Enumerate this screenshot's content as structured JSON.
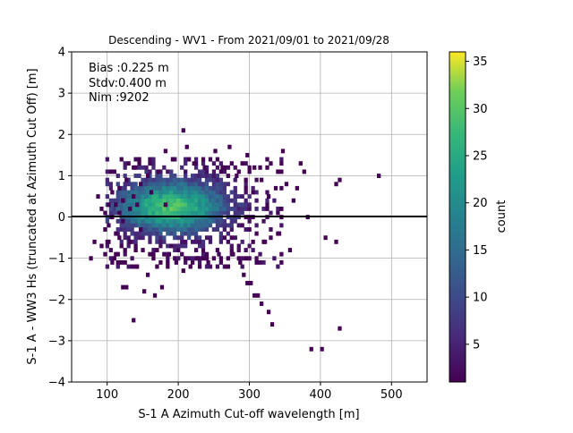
{
  "chart_data": {
    "type": "heatmap",
    "title": "Descending - WV1 - From 2021/09/01 to 2021/09/28",
    "xlabel": "S-1 A Azimuth Cut-off wavelength [m]",
    "ylabel": "S-1 A - WW3 Hs (truncated at Azimuth Cut Off) [m]",
    "xlim": [
      50,
      550
    ],
    "ylim": [
      -4,
      4
    ],
    "xticks": [
      100,
      200,
      300,
      400,
      500
    ],
    "yticks": [
      -4,
      -3,
      -2,
      -1,
      0,
      1,
      2,
      3,
      4
    ],
    "grid": true,
    "reference_line_y": 0,
    "annotations": [
      "Bias :0.225 m",
      "Stdv:0.400 m",
      "Nim :9202"
    ],
    "colorbar": {
      "label": "count",
      "range": [
        1,
        36
      ],
      "ticks": [
        5,
        10,
        15,
        20,
        25,
        30,
        35
      ],
      "colormap": "viridis"
    },
    "bin_size": {
      "x": 5,
      "y": 0.1
    },
    "cells": [
      [
        77,
        -1
      ],
      [
        82,
        -0.6
      ],
      [
        87,
        0.5
      ],
      [
        92,
        0.2
      ],
      [
        92,
        -0.7
      ],
      [
        97,
        0.1
      ],
      [
        97,
        -0.3
      ],
      [
        97,
        -0.9
      ],
      [
        102,
        0.3
      ],
      [
        102,
        -0.2
      ],
      [
        102,
        -0.6
      ],
      [
        107,
        0.6
      ],
      [
        107,
        0
      ],
      [
        107,
        -1.1
      ],
      [
        112,
        0.3
      ],
      [
        112,
        -0.4
      ],
      [
        112,
        -0.9
      ],
      [
        117,
        0.7
      ],
      [
        117,
        0.1
      ],
      [
        117,
        -0.5
      ],
      [
        122,
        0.4
      ],
      [
        122,
        -0.1
      ],
      [
        122,
        -1.7
      ],
      [
        127,
        -1.7
      ],
      [
        127,
        0.9
      ],
      [
        132,
        0.2
      ],
      [
        132,
        -0.6
      ],
      [
        137,
        1.2
      ],
      [
        137,
        0.5
      ],
      [
        137,
        -2.5
      ],
      [
        142,
        0.3
      ],
      [
        142,
        -1.2
      ],
      [
        147,
        0.8
      ],
      [
        147,
        -0.3
      ],
      [
        152,
        -1.8
      ],
      [
        157,
        1.0
      ],
      [
        157,
        -1.4
      ],
      [
        162,
        0.6
      ],
      [
        167,
        -1.9
      ],
      [
        172,
        1.1
      ],
      [
        177,
        -1.7
      ],
      [
        182,
        1.6
      ],
      [
        182,
        0.3
      ],
      [
        187,
        -0.9
      ],
      [
        192,
        1.4
      ],
      [
        197,
        -1.1
      ],
      [
        207,
        2.1
      ],
      [
        207,
        -1.3
      ],
      [
        212,
        1.7
      ],
      [
        217,
        -1.2
      ],
      [
        222,
        1.3
      ],
      [
        227,
        -1.0
      ],
      [
        237,
        1.2
      ],
      [
        242,
        -1.1
      ],
      [
        252,
        1.6
      ],
      [
        257,
        -0.9
      ],
      [
        262,
        1.2
      ],
      [
        267,
        -1.2
      ],
      [
        272,
        1.7
      ],
      [
        277,
        -0.9
      ],
      [
        282,
        1.0
      ],
      [
        287,
        -1.1
      ],
      [
        292,
        -1.4
      ],
      [
        297,
        1.5
      ],
      [
        297,
        -1.6
      ],
      [
        302,
        -1.6
      ],
      [
        307,
        1.2
      ],
      [
        307,
        -1.9
      ],
      [
        312,
        -1.9
      ],
      [
        317,
        0.9
      ],
      [
        317,
        -2.1
      ],
      [
        322,
        -0.6
      ],
      [
        327,
        0.5
      ],
      [
        327,
        -2.3
      ],
      [
        332,
        -2.6
      ],
      [
        337,
        0.7
      ],
      [
        342,
        -0.4
      ],
      [
        347,
        1.6
      ],
      [
        352,
        0.8
      ],
      [
        357,
        -0.8
      ],
      [
        362,
        0.4
      ],
      [
        367,
        0.7
      ],
      [
        372,
        1.3
      ],
      [
        377,
        1.1
      ],
      [
        382,
        0
      ],
      [
        387,
        -3.2
      ],
      [
        402,
        -3.2
      ],
      [
        407,
        -0.5
      ],
      [
        422,
        -0.6
      ],
      [
        422,
        0.8
      ],
      [
        427,
        -2.7
      ],
      [
        427,
        0.9
      ],
      [
        482,
        1.0
      ]
    ]
  }
}
